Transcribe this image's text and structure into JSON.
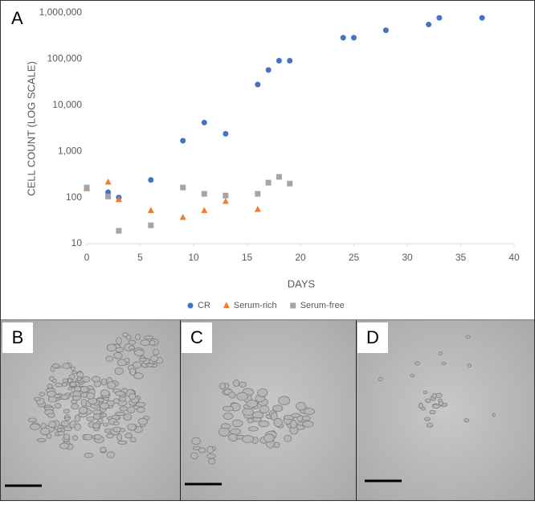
{
  "chart_data": {
    "type": "scatter",
    "panel_label": "A",
    "xlabel": "DAYS",
    "ylabel": "CELL COUNT (LOG SCALE)",
    "xlim": [
      0,
      40
    ],
    "xticks": [
      0,
      5,
      10,
      15,
      20,
      25,
      30,
      35,
      40
    ],
    "ylim": [
      10,
      1000000
    ],
    "log_y": true,
    "yticks": [
      10,
      100,
      {
        "value": 1000,
        "label": "1,000"
      },
      {
        "value": 10000,
        "label": "10,000"
      },
      {
        "value": 100000,
        "label": "100,000"
      },
      {
        "value": 1000000,
        "label": "1,000,000"
      }
    ],
    "legend": "bottom",
    "series": [
      {
        "name": "CR",
        "color": "#4472c4",
        "marker": "circle",
        "x": [
          2,
          3,
          6,
          9,
          11,
          13,
          16,
          17,
          18,
          19,
          24,
          25,
          28,
          32,
          33,
          37
        ],
        "values": [
          130,
          100,
          240,
          1700,
          4200,
          2400,
          28000,
          58000,
          92000,
          92000,
          290000,
          290000,
          420000,
          560000,
          780000,
          780000
        ]
      },
      {
        "name": "Serum-rich",
        "color": "#ed7d31",
        "marker": "triangle",
        "x": [
          0,
          2,
          3,
          6,
          9,
          11,
          13,
          16
        ],
        "values": [
          155,
          215,
          90,
          52,
          37,
          52,
          82,
          55
        ]
      },
      {
        "name": "Serum-free",
        "color": "#a5a5a5",
        "marker": "square",
        "x": [
          0,
          2,
          3,
          6,
          9,
          11,
          13,
          16,
          17,
          18,
          19
        ],
        "values": [
          165,
          105,
          19,
          25,
          165,
          120,
          110,
          120,
          210,
          280,
          200
        ]
      }
    ]
  },
  "images": [
    {
      "label": "B"
    },
    {
      "label": "C"
    },
    {
      "label": "D"
    }
  ]
}
